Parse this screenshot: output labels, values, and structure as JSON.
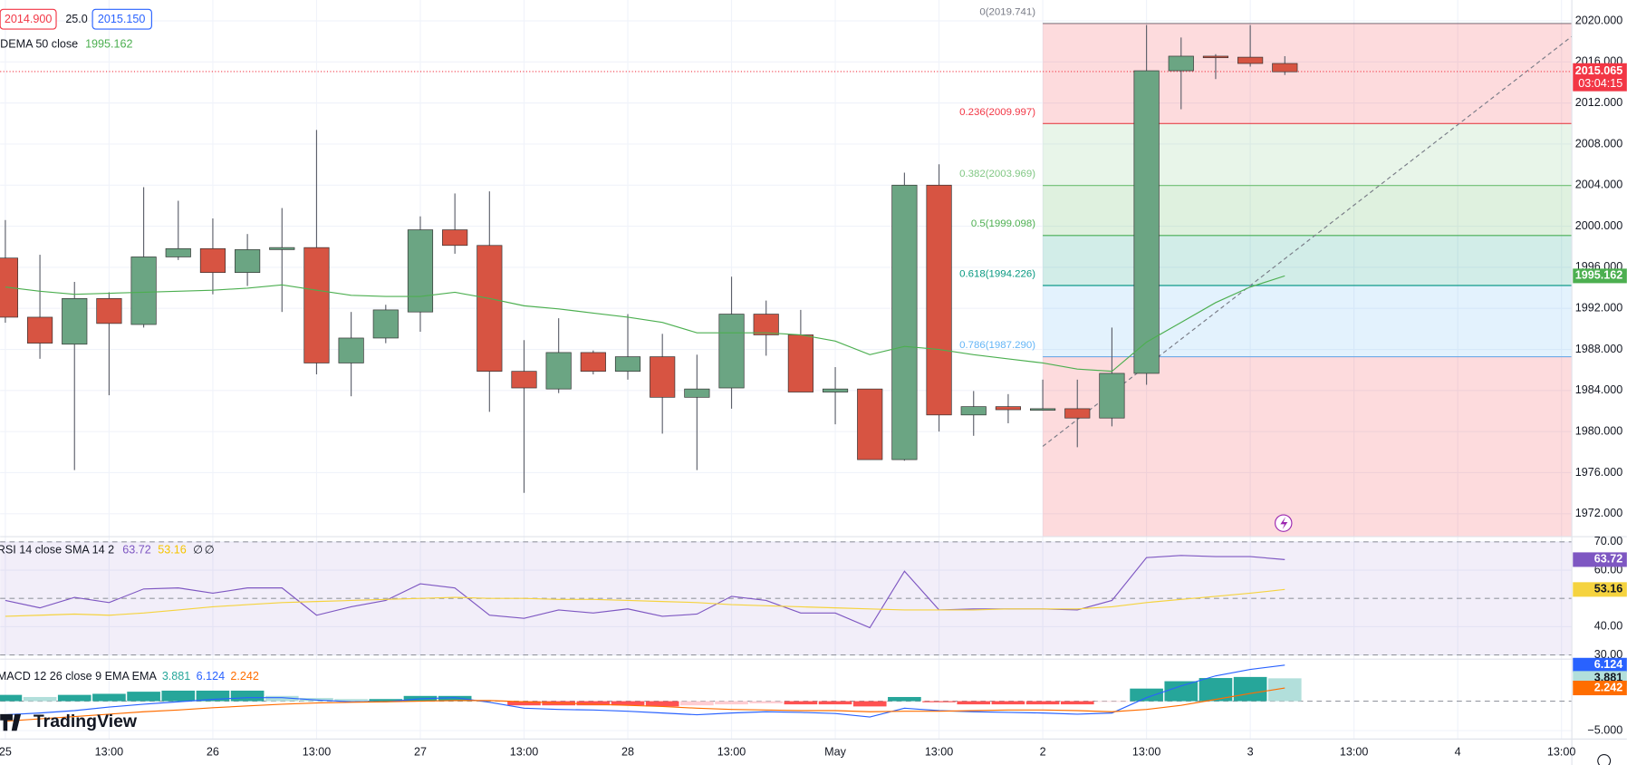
{
  "header": {
    "bid": "2014.900",
    "spread": "25.0",
    "ask": "2015.150"
  },
  "branding": "TradingView",
  "chart_data": [
    {
      "type": "candlestick",
      "legend": {
        "name": "DEMA 50 close",
        "value": 1995.162
      },
      "ylim": [
        1969.77,
        2022.03
      ],
      "yticks": [
        {
          "value": 2020,
          "label": "2020.000"
        },
        {
          "value": 2016,
          "label": "2016.000"
        },
        {
          "value": 2012,
          "label": "2012.000"
        },
        {
          "value": 2008,
          "label": "2008.000"
        },
        {
          "value": 2004,
          "label": "2004.000"
        },
        {
          "value": 2000,
          "label": "2000.000"
        },
        {
          "value": 1996,
          "label": "1996.000"
        },
        {
          "value": 1992,
          "label": "1992.000"
        },
        {
          "value": 1988,
          "label": "1988.000"
        },
        {
          "value": 1984,
          "label": "1984.000"
        },
        {
          "value": 1980,
          "label": "1980.000"
        },
        {
          "value": 1976,
          "label": "1976.000"
        },
        {
          "value": 1972,
          "label": "1972.000"
        }
      ],
      "x_labels": [
        "25",
        "13:00",
        "26",
        "13:00",
        "27",
        "13:00",
        "28",
        "13:00",
        "May",
        "13:00",
        "2",
        "13:00",
        "3",
        "13:00",
        "4",
        "13:00"
      ],
      "up_color": "#6ba583",
      "down_color": "#d75442",
      "open": [
        1996.9,
        1991.14,
        1988.51,
        1992.96,
        1990.43,
        1997.01,
        1997.82,
        1995.49,
        1997.72,
        1997.92,
        1986.68,
        1989.11,
        1991.65,
        1999.65,
        1998.13,
        1985.87,
        1984.15,
        1987.7,
        1985.87,
        1987.29,
        1983.34,
        1984.25,
        1991.44,
        1989.42,
        1983.85,
        1984.15,
        1977.27,
        2004.0,
        1981.62,
        1982.43,
        1982.13,
        1982.23,
        1981.32,
        1985.67,
        2015.14,
        2016.56,
        2016.46,
        2015.85
      ],
      "high": [
        2000.6,
        1997.22,
        1994.58,
        1993.57,
        2003.8,
        2002.48,
        2000.76,
        1999.24,
        2001.77,
        2009.37,
        1991.65,
        1992.35,
        2000.96,
        2003.19,
        2003.39,
        1988.91,
        1991.04,
        1987.9,
        1991.44,
        1989.52,
        1987.49,
        1995.09,
        1992.76,
        1991.85,
        1986.28,
        1984.15,
        2005.22,
        2006.03,
        1983.95,
        1983.65,
        1985.06,
        1985.06,
        1990.13,
        2019.59,
        2018.38,
        2016.76,
        2019.59,
        2016.56
      ],
      "low": [
        1990.6,
        1987.09,
        1976.25,
        1983.54,
        1990.13,
        1996.71,
        1993.37,
        1994.18,
        1991.65,
        1985.57,
        1983.44,
        1988.61,
        1989.72,
        1997.32,
        1981.92,
        1974.03,
        1983.75,
        1985.57,
        1985.06,
        1979.8,
        1976.25,
        1982.23,
        1987.39,
        1983.85,
        1980.71,
        1977.27,
        1977.17,
        1980.0,
        1979.59,
        1980.81,
        1982.03,
        1978.48,
        1980.51,
        1984.56,
        2011.39,
        2014.33,
        2015.54,
        2014.73
      ],
      "close": [
        1991.14,
        1988.61,
        1992.96,
        1990.53,
        1997.01,
        1997.82,
        1995.49,
        1997.72,
        1997.92,
        1986.68,
        1989.11,
        1991.85,
        1999.65,
        1998.13,
        1985.87,
        1984.25,
        1987.7,
        1985.87,
        1987.29,
        1983.34,
        1984.15,
        1991.44,
        1989.42,
        1983.85,
        1984.15,
        1977.27,
        2004.0,
        1981.62,
        1982.43,
        1982.13,
        1982.23,
        1981.32,
        1985.67,
        2015.14,
        2016.56,
        2016.46,
        2015.85,
        2015.04
      ],
      "dema": {
        "color": "#4caf50",
        "values": [
          1994.08,
          1993.67,
          1993.37,
          1993.47,
          1993.57,
          1993.67,
          1993.77,
          1993.97,
          1994.28,
          1993.77,
          1993.27,
          1993.16,
          1993.16,
          1993.57,
          1992.96,
          1992.25,
          1991.95,
          1991.54,
          1991.14,
          1990.63,
          1989.62,
          1989.62,
          1989.62,
          1989.42,
          1988.81,
          1987.49,
          1988.3,
          1988.0,
          1987.49,
          1987.09,
          1986.68,
          1986.08,
          1985.87,
          1988.71,
          1990.63,
          1992.56,
          1994.08,
          1995.162
        ]
      },
      "last_price": {
        "value": 2015.065,
        "countdown": "03:04:15",
        "color": "#f23645"
      },
      "fib": {
        "lower_zone_color": "#f23645",
        "levels": [
          {
            "label": "0(2019.741)",
            "price": 2019.741,
            "color": "#787b86"
          },
          {
            "label": "0.236(2009.997)",
            "price": 2009.997,
            "color": "#f23645"
          },
          {
            "label": "0.382(2003.969)",
            "price": 2003.969,
            "color": "#81c784"
          },
          {
            "label": "0.5(1999.098)",
            "price": 1999.098,
            "color": "#4caf50"
          },
          {
            "label": "0.618(1994.226)",
            "price": 1994.226,
            "color": "#089981"
          },
          {
            "label": "0.786(1987.290)",
            "price": 1987.29,
            "color": "#64b5f6"
          }
        ]
      }
    },
    {
      "type": "rsi",
      "legend": {
        "name": "RSI 14 close SMA 14 2",
        "values": [
          63.72,
          53.16
        ],
        "extras": [
          "∅",
          "∅"
        ]
      },
      "ylim": [
        28.52,
        71.85
      ],
      "yticks": [
        {
          "value": 70,
          "label": "70.00"
        },
        {
          "value": 60,
          "label": "60.00"
        },
        {
          "value": 40,
          "label": "40.00"
        },
        {
          "value": 30,
          "label": "30.00"
        }
      ],
      "band": [
        30,
        70
      ],
      "band_color": "#7e57c2",
      "hlines": [
        70,
        50,
        30
      ],
      "series": [
        {
          "color": "#7e57c2",
          "values": [
            49.26,
            46.67,
            50.37,
            48.52,
            53.33,
            53.7,
            51.85,
            53.7,
            53.7,
            44.07,
            47.04,
            49.26,
            55.19,
            53.7,
            44.07,
            42.96,
            45.93,
            44.81,
            46.3,
            43.7,
            44.44,
            50.74,
            49.26,
            44.81,
            44.81,
            39.63,
            59.63,
            45.93,
            46.3,
            46.3,
            46.3,
            45.93,
            49.26,
            64.44,
            65.19,
            64.81,
            64.81,
            63.72
          ]
        },
        {
          "color": "#f5d33f",
          "values": [
            43.7,
            44.07,
            44.44,
            44.07,
            44.81,
            45.93,
            47.04,
            47.78,
            48.52,
            48.89,
            49.26,
            49.63,
            50.0,
            50.37,
            50.0,
            50.0,
            49.63,
            49.63,
            49.26,
            48.89,
            48.52,
            47.78,
            47.41,
            47.04,
            46.67,
            46.3,
            45.93,
            45.93,
            45.93,
            46.3,
            46.3,
            46.3,
            47.04,
            48.52,
            49.63,
            50.74,
            51.85,
            53.16
          ]
        }
      ]
    },
    {
      "type": "macd",
      "legend": {
        "name": "MACD 12 26 close 9 EMA EMA",
        "values": [
          3.881,
          6.124,
          2.242
        ]
      },
      "ylim": [
        -6.43,
        7.14
      ],
      "yticks": [
        {
          "value": -5,
          "label": "−5.000"
        }
      ],
      "hist_colors": {
        "up_rising": "#26a69a",
        "up_falling": "#b2dfdb",
        "down_falling": "#ff5252",
        "down_rising": "#ffcdd2"
      },
      "histogram": [
        1.07,
        0.71,
        1.07,
        1.25,
        1.61,
        1.79,
        1.79,
        1.79,
        0.89,
        0.54,
        0.36,
        0.36,
        0.89,
        0.89,
        0.1,
        -0.71,
        -0.71,
        -0.71,
        -0.71,
        -0.89,
        -0.71,
        -0.54,
        -0.36,
        -0.54,
        -0.54,
        -0.89,
        0.71,
        -0.18,
        -0.54,
        -0.54,
        -0.54,
        -0.54,
        -0.1,
        2.14,
        3.39,
        3.93,
        4.11,
        3.881
      ],
      "series": [
        {
          "color": "#2962ff",
          "values": [
            -2.3,
            -2.0,
            -1.6,
            -1.0,
            -0.5,
            -0.1,
            0.3,
            0.6,
            0.6,
            0.2,
            -0.1,
            -0.1,
            0.4,
            0.6,
            -0.2,
            -1.2,
            -1.4,
            -1.5,
            -1.7,
            -2.0,
            -2.3,
            -2.0,
            -1.8,
            -1.9,
            -2.1,
            -2.7,
            -1.2,
            -1.6,
            -1.8,
            -1.9,
            -2.0,
            -2.2,
            -2.0,
            0.6,
            2.6,
            4.3,
            5.4,
            6.124
          ]
        },
        {
          "color": "#ff6d00",
          "values": [
            -3.4,
            -3.0,
            -2.6,
            -2.2,
            -1.8,
            -1.5,
            -1.1,
            -0.8,
            -0.5,
            -0.3,
            -0.2,
            -0.1,
            0,
            0.1,
            0.1,
            -0.1,
            -0.3,
            -0.5,
            -0.7,
            -0.9,
            -1.2,
            -1.4,
            -1.5,
            -1.6,
            -1.6,
            -1.8,
            -1.7,
            -1.7,
            -1.6,
            -1.5,
            -1.5,
            -1.6,
            -1.8,
            -1.4,
            -0.7,
            0.3,
            1.3,
            2.242
          ]
        }
      ]
    }
  ]
}
